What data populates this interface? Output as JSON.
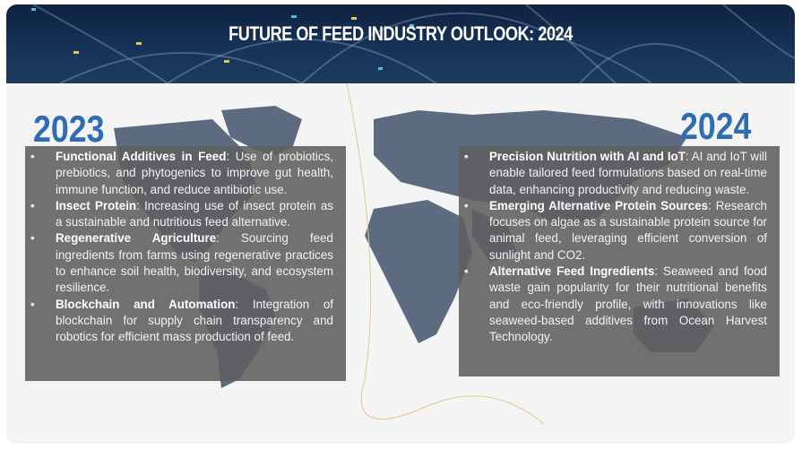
{
  "header": {
    "title": "FUTURE OF FEED INDUSTRY OUTLOOK: 2024"
  },
  "left": {
    "year": "2023",
    "items": [
      {
        "term": "Functional Additives in Feed",
        "text": ": Use of probiotics, prebiotics, and phytogenics to improve gut health, immune function, and reduce antibiotic use."
      },
      {
        "term": "Insect Protein",
        "text": ": Increasing use of insect protein as a sustainable and nutritious feed alternative."
      },
      {
        "term": "Regenerative Agriculture",
        "text": ": Sourcing feed ingredients from farms using regenerative practices to enhance soil health, biodiversity, and ecosystem resilience."
      },
      {
        "term": "Blockchain and Automation",
        "text": ": Integration of blockchain for supply chain transparency and robotics for efficient mass production of feed."
      }
    ]
  },
  "right": {
    "year": "2024",
    "items": [
      {
        "term": "Precision Nutrition with AI and IoT",
        "text": ": AI and IoT will enable tailored feed formulations based on real-time data, enhancing productivity and reducing waste."
      },
      {
        "term": "Emerging Alternative Protein Sources",
        "text": ": Research focuses on algae as a sustainable protein source for animal feed, leveraging efficient conversion of sunlight and CO2."
      },
      {
        "term": "Alternative Feed Ingredients",
        "text": ": Seaweed and food waste gain popularity for their nutritional benefits and eco-friendly profile, with innovations like seaweed-based additives from Ocean Harvest Technology."
      }
    ]
  },
  "colors": {
    "year": "#2f6db3",
    "header": "#17345a",
    "map": "#5d6b80",
    "box": "#5f5f5f"
  }
}
